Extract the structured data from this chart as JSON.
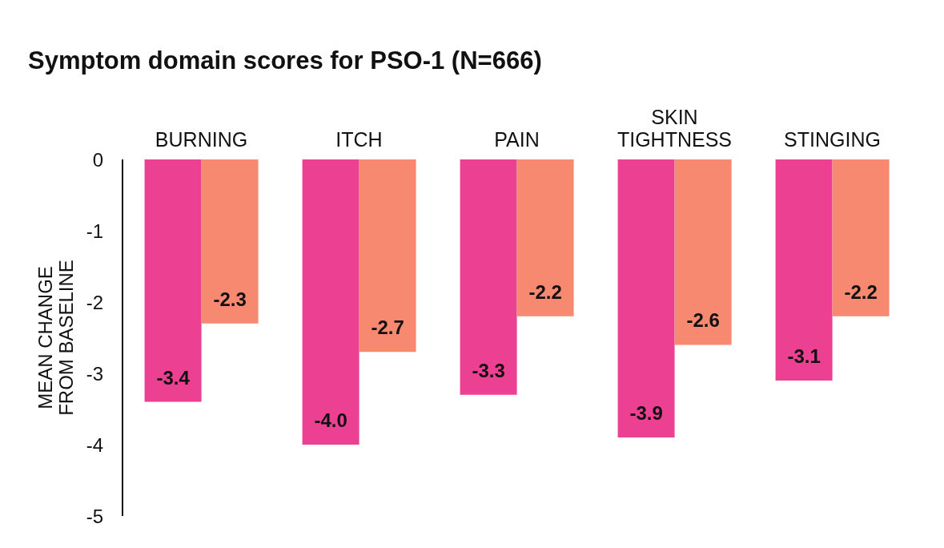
{
  "chart_data": {
    "type": "bar",
    "title": "Symptom domain scores for PSO-1 (N=666)",
    "ylabel": "MEAN CHANGE FROM BASELINE",
    "categories": [
      "BURNING",
      "ITCH",
      "PAIN",
      "SKIN TIGHTNESS",
      "STINGING"
    ],
    "series": [
      {
        "color": "#ec4192",
        "values": [
          -3.4,
          -4.0,
          -3.3,
          -3.9,
          -3.1
        ],
        "value_labels": [
          "-3.4",
          "-4.0",
          "-3.3",
          "-3.9",
          "-3.1"
        ]
      },
      {
        "color": "#f6896f",
        "values": [
          -2.3,
          -2.7,
          -2.2,
          -2.6,
          -2.2
        ],
        "value_labels": [
          "-2.3",
          "-2.7",
          "-2.2",
          "-2.6",
          "-2.2"
        ]
      }
    ],
    "ylim": [
      -5,
      0
    ],
    "yticks": [
      0,
      -1,
      -2,
      -3,
      -4,
      -5
    ]
  }
}
